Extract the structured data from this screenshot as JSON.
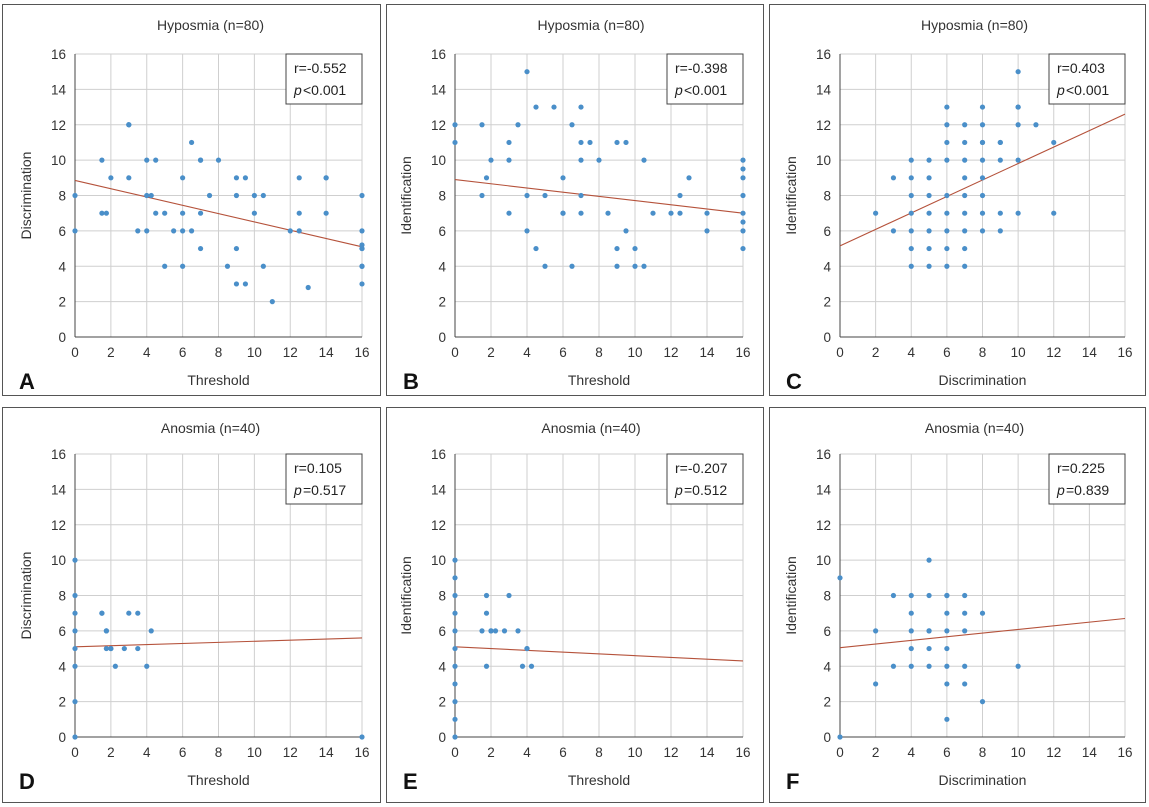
{
  "chart_data": [
    {
      "type": "scatter",
      "letter": "A",
      "title": "Hyposmia (n=80)",
      "xlabel": "Threshold",
      "ylabel": "Discrimination",
      "xlim": [
        0,
        16
      ],
      "ylim": [
        0,
        16
      ],
      "xticks": [
        "0",
        "2",
        "4",
        "6",
        "8",
        "10",
        "12",
        "14",
        "16"
      ],
      "yticks": [
        "0",
        "2",
        "4",
        "6",
        "8",
        "10",
        "12",
        "14",
        "16"
      ],
      "stats": {
        "r": "r=-0.552",
        "p_letter": "p",
        "p_value": "<0.001"
      },
      "regression": {
        "x": [
          0,
          16
        ],
        "y": [
          8.85,
          5.1
        ]
      },
      "x": [
        0,
        0,
        1.5,
        1.5,
        1.75,
        2,
        3,
        3,
        3,
        3.5,
        4,
        4,
        4,
        4.25,
        4.5,
        4.5,
        5,
        5,
        5.5,
        6,
        6,
        6,
        6,
        6.5,
        6.5,
        7,
        7,
        7,
        7,
        7.5,
        8,
        8.5,
        9,
        9,
        9,
        9,
        9.5,
        9.5,
        10,
        10,
        10.5,
        10.5,
        11,
        12,
        12.5,
        12.5,
        12.5,
        13,
        14,
        14,
        14,
        16,
        16,
        16,
        16,
        16,
        16,
        16,
        16
      ],
      "y": [
        8,
        6,
        10,
        7,
        7,
        9,
        12,
        12,
        9,
        6,
        10,
        8,
        6,
        8,
        10,
        7,
        7,
        4,
        6,
        9,
        7,
        6,
        4,
        11,
        6,
        10,
        10,
        7,
        5,
        8,
        10,
        4,
        9,
        8,
        5,
        3,
        9,
        3,
        8,
        7,
        8,
        4,
        2,
        6,
        9,
        7,
        6,
        2.8,
        9,
        9,
        7,
        8,
        6,
        5,
        5,
        4,
        4,
        3,
        5.2
      ]
    },
    {
      "type": "scatter",
      "letter": "B",
      "title": "Hyposmia (n=80)",
      "xlabel": "Threshold",
      "ylabel": "Identification",
      "xlim": [
        0,
        16
      ],
      "ylim": [
        0,
        16
      ],
      "xticks": [
        "0",
        "2",
        "4",
        "6",
        "8",
        "10",
        "12",
        "14",
        "16"
      ],
      "yticks": [
        "0",
        "2",
        "4",
        "6",
        "8",
        "10",
        "12",
        "14",
        "16"
      ],
      "stats": {
        "r": "r=-0.398",
        "p_letter": "p",
        "p_value": "<0.001"
      },
      "regression": {
        "x": [
          0,
          16
        ],
        "y": [
          8.9,
          7.0
        ]
      },
      "x": [
        0,
        0,
        1.5,
        1.5,
        1.75,
        2,
        3,
        3,
        3,
        3.5,
        4,
        4,
        4,
        4.5,
        4.5,
        5,
        5,
        5.5,
        6,
        6,
        6,
        6.5,
        6.5,
        7,
        7,
        7,
        7,
        7,
        7.5,
        8,
        8.5,
        9,
        9,
        9,
        9.5,
        9.5,
        10,
        10,
        10.5,
        10.5,
        11,
        12,
        12.5,
        12.5,
        13,
        14,
        14,
        16,
        16,
        16,
        16,
        16,
        16,
        16,
        16
      ],
      "y": [
        12,
        11,
        12,
        8,
        9,
        10,
        11,
        10,
        7,
        12,
        15,
        8,
        6,
        13,
        5,
        8,
        4,
        13,
        9,
        7,
        7,
        12,
        4,
        13,
        11,
        10,
        8,
        7,
        11,
        10,
        7,
        11,
        5,
        4,
        11,
        6,
        5,
        4,
        10,
        4,
        7,
        7,
        8,
        7,
        9,
        7,
        6,
        10,
        9.5,
        9,
        8,
        7,
        6,
        5,
        6.5
      ]
    },
    {
      "type": "scatter",
      "letter": "C",
      "title": "Hyposmia (n=80)",
      "xlabel": "Discrimination",
      "ylabel": "Identification",
      "xlim": [
        0,
        16
      ],
      "ylim": [
        0,
        16
      ],
      "xticks": [
        "0",
        "2",
        "4",
        "6",
        "8",
        "10",
        "12",
        "14",
        "16"
      ],
      "yticks": [
        "0",
        "2",
        "4",
        "6",
        "8",
        "10",
        "12",
        "14",
        "16"
      ],
      "stats": {
        "r": "r=0.403",
        "p_letter": "p",
        "p_value": "<0.001"
      },
      "regression": {
        "x": [
          0,
          16
        ],
        "y": [
          5.15,
          12.6
        ]
      },
      "x": [
        2,
        3,
        3,
        4,
        4,
        4,
        4,
        4,
        4,
        4,
        5,
        5,
        5,
        5,
        5,
        5,
        5,
        6,
        6,
        6,
        6,
        6,
        6,
        6,
        6,
        6,
        7,
        7,
        7,
        7,
        7,
        7,
        7,
        7,
        7,
        8,
        8,
        8,
        8,
        8,
        8,
        8,
        8,
        8,
        9,
        9,
        9,
        9,
        9,
        10,
        10,
        10,
        10,
        10,
        10,
        11,
        12,
        12
      ],
      "y": [
        7,
        9,
        6,
        10,
        9,
        8,
        7,
        6,
        5,
        4,
        10,
        9,
        8,
        7,
        6,
        5,
        4,
        13,
        12,
        11,
        10,
        8,
        7,
        6,
        5,
        4,
        12,
        11,
        10,
        9,
        8,
        7,
        6,
        5,
        4,
        13,
        11,
        10,
        9,
        8,
        7,
        6,
        11,
        12,
        11,
        10,
        7,
        6,
        11,
        15,
        13,
        12,
        10,
        7,
        13,
        12,
        11,
        7
      ]
    },
    {
      "type": "scatter",
      "letter": "D",
      "title": "Anosmia (n=40)",
      "xlabel": "Threshold",
      "ylabel": "Discrimination",
      "xlim": [
        0,
        16
      ],
      "ylim": [
        0,
        16
      ],
      "xticks": [
        "0",
        "2",
        "4",
        "6",
        "8",
        "10",
        "12",
        "14",
        "16"
      ],
      "yticks": [
        "0",
        "2",
        "4",
        "6",
        "8",
        "10",
        "12",
        "14",
        "16"
      ],
      "stats": {
        "r": "r=0.105",
        "p_letter": "p",
        "p_value": "=0.517"
      },
      "regression": {
        "x": [
          0,
          16
        ],
        "y": [
          5.1,
          5.6
        ]
      },
      "x": [
        0,
        0,
        0,
        0,
        0,
        0,
        0,
        0,
        1.5,
        1.5,
        1.75,
        1.75,
        1.75,
        2,
        2,
        2.25,
        2.75,
        3,
        3.5,
        3.5,
        4,
        4.25,
        16
      ],
      "y": [
        10,
        8,
        7,
        6,
        5,
        4,
        2,
        0,
        7,
        7,
        6,
        6,
        5,
        5,
        5,
        4,
        5,
        7,
        7,
        5,
        4,
        6,
        0
      ]
    },
    {
      "type": "scatter",
      "letter": "E",
      "title": "Anosmia (n=40)",
      "xlabel": "Threshold",
      "ylabel": "Identification",
      "xlim": [
        0,
        16
      ],
      "ylim": [
        0,
        16
      ],
      "xticks": [
        "0",
        "2",
        "4",
        "6",
        "8",
        "10",
        "12",
        "14",
        "16"
      ],
      "yticks": [
        "0",
        "2",
        "4",
        "6",
        "8",
        "10",
        "12",
        "14",
        "16"
      ],
      "stats": {
        "r": "r=-0.207",
        "p_letter": "p",
        "p_value": "=0.512"
      },
      "regression": {
        "x": [
          0,
          16
        ],
        "y": [
          5.1,
          4.3
        ]
      },
      "x": [
        0,
        0,
        0,
        0,
        0,
        0,
        0,
        0,
        0,
        0,
        0,
        1.5,
        1.75,
        1.75,
        1.75,
        2,
        2,
        2.25,
        2.75,
        3,
        3.5,
        3.75,
        4,
        4,
        4.25
      ],
      "y": [
        10,
        9,
        8,
        7,
        6,
        5,
        4,
        3,
        2,
        1,
        0,
        6,
        8,
        7,
        4,
        6,
        6,
        6,
        6,
        8,
        6,
        4,
        5,
        5,
        4
      ]
    },
    {
      "type": "scatter",
      "letter": "F",
      "title": "Anosmia (n=40)",
      "xlabel": "Discrimination",
      "ylabel": "Identification",
      "xlim": [
        0,
        16
      ],
      "ylim": [
        0,
        16
      ],
      "xticks": [
        "0",
        "2",
        "4",
        "6",
        "8",
        "10",
        "12",
        "14",
        "16"
      ],
      "yticks": [
        "0",
        "2",
        "4",
        "6",
        "8",
        "10",
        "12",
        "14",
        "16"
      ],
      "stats": {
        "r": "r=0.225",
        "p_letter": "p",
        "p_value": "=0.839"
      },
      "regression": {
        "x": [
          0,
          16
        ],
        "y": [
          5.05,
          6.7
        ]
      },
      "x": [
        0,
        0,
        2,
        2,
        3,
        3,
        4,
        4,
        4,
        4,
        4,
        5,
        5,
        5,
        5,
        5,
        5,
        6,
        6,
        6,
        6,
        6,
        6,
        6,
        6,
        7,
        7,
        7,
        7,
        7,
        8,
        8,
        10
      ],
      "y": [
        9,
        0,
        6,
        3,
        8,
        4,
        8,
        7,
        6,
        5,
        4,
        10,
        8,
        6,
        5,
        4,
        6,
        8,
        7,
        6,
        5,
        4,
        3,
        1,
        8,
        8,
        7,
        6,
        4,
        3,
        7,
        2,
        4
      ]
    }
  ]
}
